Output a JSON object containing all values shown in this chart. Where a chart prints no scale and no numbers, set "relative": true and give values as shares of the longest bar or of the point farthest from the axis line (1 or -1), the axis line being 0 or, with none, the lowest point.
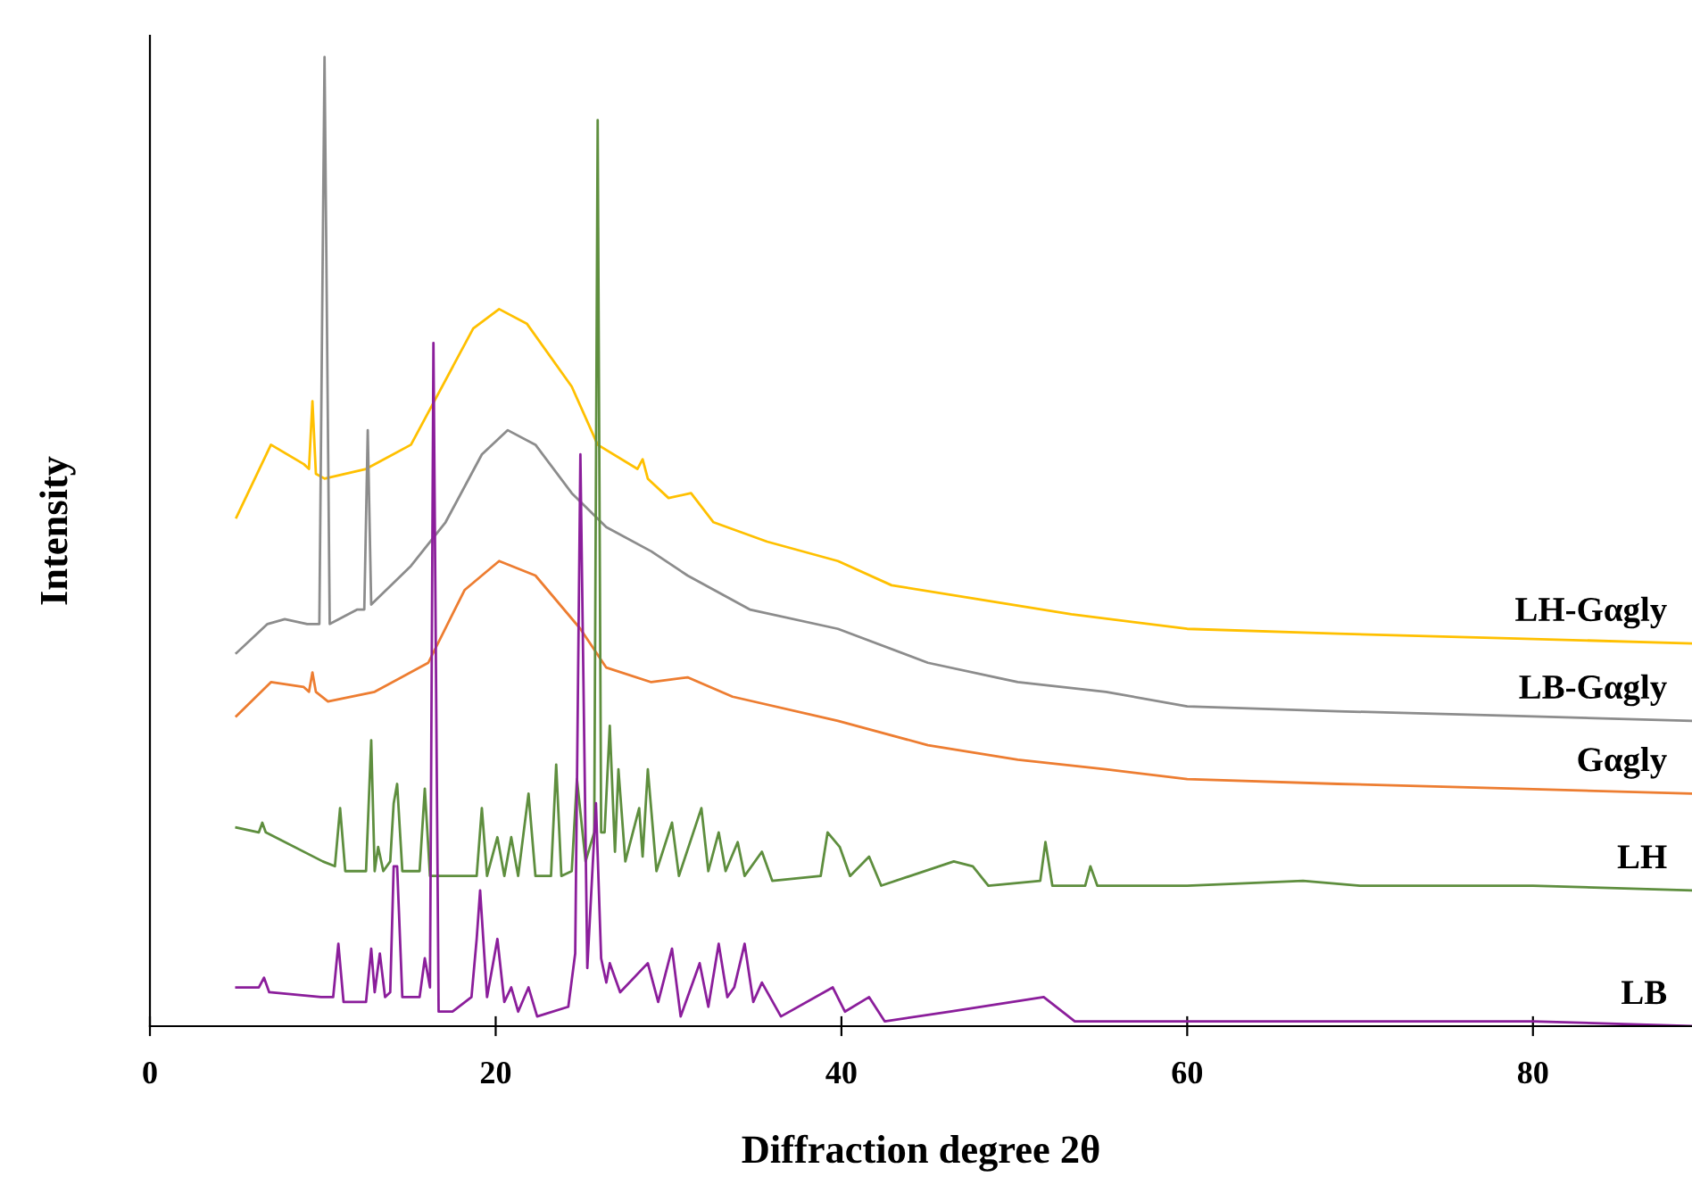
{
  "chart_data": {
    "type": "line",
    "xlabel": "Diffraction degree 2θ",
    "ylabel": "Intensity",
    "relative": true,
    "xlim": [
      0,
      89.2
    ],
    "xticks": [
      0,
      20,
      40,
      60,
      80
    ],
    "grid": false,
    "legend": false,
    "marker": "none",
    "line_style": "solid",
    "tick_labels": "x",
    "series": [
      {
        "name": "LH-Gαgly",
        "color": "#ffc000",
        "x": [
          5,
          7.0,
          8.9,
          9.2,
          9.4,
          9.6,
          10.1,
          12.5,
          15.1,
          16.6,
          18.7,
          20.2,
          21.8,
          24.4,
          25.9,
          28.2,
          28.5,
          28.8,
          30,
          31.3,
          32.6,
          35.7,
          39.8,
          42.9,
          48.1,
          53.3,
          60,
          68.7,
          79.1,
          89.2
        ],
        "values": [
          0.525,
          0.6,
          0.58,
          0.575,
          0.645,
          0.57,
          0.565,
          0.575,
          0.6,
          0.65,
          0.72,
          0.74,
          0.725,
          0.66,
          0.6,
          0.575,
          0.585,
          0.565,
          0.545,
          0.55,
          0.52,
          0.5,
          0.48,
          0.455,
          0.44,
          0.425,
          0.41,
          0.405,
          0.4,
          0.395
        ]
      },
      {
        "name": "LB-Gαgly",
        "color": "#8c8c8c",
        "x": [
          5,
          6.8,
          7.8,
          9.1,
          9.8,
          10.1,
          10.4,
          12.0,
          12.4,
          12.6,
          12.8,
          15.1,
          17.1,
          19.2,
          20.7,
          22.3,
          24.4,
          26.4,
          29,
          31.1,
          34.7,
          39.8,
          45,
          50.2,
          55.3,
          60,
          68.7,
          79.1,
          89.2
        ],
        "values": [
          0.385,
          0.415,
          0.42,
          0.415,
          0.415,
          1.0,
          0.415,
          0.43,
          0.43,
          0.615,
          0.435,
          0.475,
          0.52,
          0.59,
          0.615,
          0.6,
          0.55,
          0.515,
          0.49,
          0.465,
          0.43,
          0.41,
          0.375,
          0.355,
          0.345,
          0.33,
          0.325,
          0.32,
          0.315
        ]
      },
      {
        "name": "Gαgly",
        "color": "#ed7d31",
        "x": [
          5,
          7.0,
          8.9,
          9.2,
          9.4,
          9.6,
          10.3,
          13,
          16.1,
          18.2,
          20.2,
          22.3,
          24.9,
          26.4,
          29,
          31.1,
          33.7,
          39.8,
          45,
          50.2,
          55.3,
          60,
          68.7,
          79.1,
          89.2
        ],
        "values": [
          0.32,
          0.355,
          0.35,
          0.345,
          0.365,
          0.345,
          0.335,
          0.345,
          0.375,
          0.45,
          0.48,
          0.465,
          0.41,
          0.37,
          0.355,
          0.36,
          0.34,
          0.315,
          0.29,
          0.275,
          0.265,
          0.255,
          0.25,
          0.245,
          0.24
        ]
      },
      {
        "name": "LH",
        "color": "#5e8e3e",
        "x": [
          5,
          6.3,
          6.5,
          6.7,
          10.0,
          10.7,
          11.0,
          11.3,
          12.5,
          12.8,
          13.0,
          13.2,
          13.5,
          13.9,
          14.1,
          14.3,
          14.6,
          15.6,
          15.9,
          16.2,
          17.5,
          18.9,
          19.2,
          19.5,
          20.1,
          20.5,
          20.9,
          21.3,
          21.9,
          22.3,
          23.2,
          23.5,
          23.8,
          24.4,
          24.7,
          25.2,
          25.7,
          25.9,
          26.1,
          26.3,
          26.6,
          26.9,
          27.1,
          27.5,
          28.3,
          28.5,
          28.8,
          29.3,
          30.2,
          30.6,
          31.9,
          32.3,
          32.9,
          33.3,
          34.0,
          34.4,
          35.4,
          36.0,
          38.8,
          39.2,
          39.9,
          40.5,
          41.6,
          42.3,
          46.5,
          47.6,
          48.5,
          51.5,
          51.8,
          52.2,
          54.1,
          54.4,
          54.8,
          60,
          66.7,
          70,
          80,
          89.2
        ],
        "values": [
          0.205,
          0.2,
          0.21,
          0.2,
          0.17,
          0.165,
          0.225,
          0.16,
          0.16,
          0.295,
          0.16,
          0.185,
          0.16,
          0.17,
          0.23,
          0.25,
          0.16,
          0.16,
          0.245,
          0.155,
          0.155,
          0.155,
          0.225,
          0.155,
          0.195,
          0.155,
          0.195,
          0.155,
          0.24,
          0.155,
          0.155,
          0.27,
          0.155,
          0.16,
          0.255,
          0.17,
          0.2,
          0.935,
          0.2,
          0.2,
          0.31,
          0.18,
          0.265,
          0.17,
          0.225,
          0.175,
          0.265,
          0.16,
          0.21,
          0.155,
          0.225,
          0.16,
          0.2,
          0.16,
          0.19,
          0.155,
          0.18,
          0.15,
          0.155,
          0.2,
          0.185,
          0.155,
          0.175,
          0.145,
          0.17,
          0.165,
          0.145,
          0.15,
          0.19,
          0.145,
          0.145,
          0.165,
          0.145,
          0.145,
          0.15,
          0.145,
          0.145,
          0.14
        ]
      },
      {
        "name": "LB",
        "color": "#8b1e9b",
        "x": [
          5,
          6.3,
          6.6,
          6.9,
          9.9,
          10.6,
          10.9,
          11.2,
          12.5,
          12.8,
          13.0,
          13.3,
          13.6,
          13.9,
          14.1,
          14.3,
          14.6,
          15.6,
          15.9,
          16.2,
          16.4,
          16.7,
          17.5,
          18.6,
          18.9,
          19.1,
          19.5,
          20.1,
          20.5,
          20.9,
          21.3,
          21.9,
          22.4,
          24.2,
          24.6,
          24.9,
          25.3,
          25.8,
          26.1,
          26.4,
          26.6,
          27.2,
          28.8,
          29.4,
          30.2,
          30.7,
          31.8,
          32.3,
          32.9,
          33.4,
          33.8,
          34.4,
          34.9,
          35.4,
          36.5,
          39.5,
          40.2,
          41.6,
          42.5,
          46.3,
          51.7,
          53.5,
          60,
          71.8,
          80,
          89.2
        ],
        "values": [
          0.04,
          0.04,
          0.05,
          0.035,
          0.03,
          0.03,
          0.085,
          0.025,
          0.025,
          0.08,
          0.035,
          0.075,
          0.03,
          0.035,
          0.165,
          0.165,
          0.03,
          0.03,
          0.07,
          0.04,
          0.705,
          0.015,
          0.015,
          0.03,
          0.09,
          0.14,
          0.03,
          0.09,
          0.025,
          0.04,
          0.015,
          0.04,
          0.01,
          0.02,
          0.075,
          0.59,
          0.06,
          0.23,
          0.07,
          0.045,
          0.065,
          0.035,
          0.065,
          0.025,
          0.08,
          0.01,
          0.065,
          0.02,
          0.085,
          0.03,
          0.04,
          0.085,
          0.025,
          0.045,
          0.01,
          0.04,
          0.015,
          0.03,
          0.005,
          0.015,
          0.03,
          0.005,
          0.005,
          0.005,
          0.005,
          0.0
        ]
      }
    ]
  }
}
